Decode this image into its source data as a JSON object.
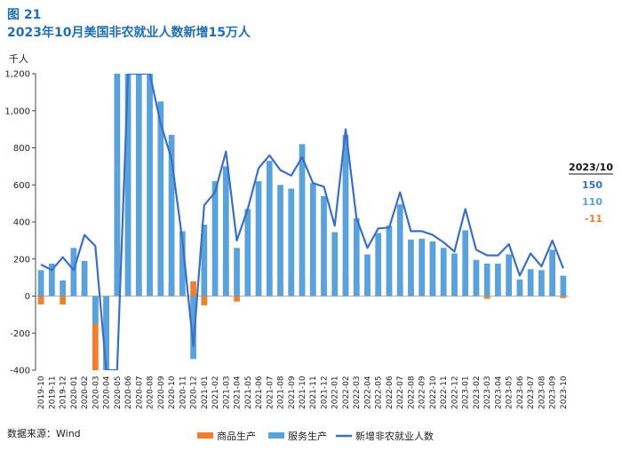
{
  "figure": {
    "number": "图 21",
    "title": "2023年10月美国非农就业人数新增15万人",
    "unit": "千人",
    "source": "数据来源：Wind"
  },
  "colors": {
    "goods": "#f07f2e",
    "services": "#5aa2dc",
    "total": "#3a6fc4",
    "accent": "#1f6fb2"
  },
  "annotation": {
    "title": "2023/10",
    "values": [
      "150",
      "110",
      "-11"
    ]
  },
  "chart_data": {
    "type": "bar",
    "title": "",
    "xlabel": "",
    "ylabel": "千人",
    "ylim": [
      -400,
      1200
    ],
    "yticks": [
      -400,
      -200,
      0,
      200,
      400,
      600,
      800,
      1000,
      1200
    ],
    "ytick_labels": [
      "-400",
      "-200",
      "0",
      "200",
      "400",
      "600",
      "800",
      "1,000",
      "1,200"
    ],
    "grid": false,
    "legend_position": "bottom",
    "categories": [
      "2019-10",
      "2019-11",
      "2019-12",
      "2020-01",
      "2020-02",
      "2020-03",
      "2020-04",
      "2020-05",
      "2020-06",
      "2020-07",
      "2020-08",
      "2020-09",
      "2020-10",
      "2020-11",
      "2020-12",
      "2021-01",
      "2021-02",
      "2021-03",
      "2021-04",
      "2021-05",
      "2021-06",
      "2021-07",
      "2021-08",
      "2021-09",
      "2021-10",
      "2021-11",
      "2021-12",
      "2022-01",
      "2022-02",
      "2022-03",
      "2022-04",
      "2022-05",
      "2022-06",
      "2022-07",
      "2022-08",
      "2022-09",
      "2022-10",
      "2022-11",
      "2022-12",
      "2023-01",
      "2023-02",
      "2023-03",
      "2023-04",
      "2023-05",
      "2023-06",
      "2023-07",
      "2023-08",
      "2023-09",
      "2023-10"
    ],
    "series": [
      {
        "name": "商品生产",
        "kind": "bar",
        "values": [
          -45,
          25,
          -45,
          35,
          30,
          -400,
          -400,
          690,
          480,
          55,
          50,
          80,
          75,
          40,
          80,
          -50,
          0,
          170,
          -30,
          15,
          25,
          90,
          70,
          85,
          105,
          95,
          85,
          35,
          115,
          80,
          65,
          60,
          55,
          65,
          40,
          40,
          45,
          45,
          45,
          45,
          20,
          -15,
          20,
          20,
          30,
          15,
          25,
          25,
          -11
        ]
      },
      {
        "name": "服务生产",
        "kind": "bar",
        "values": [
          140,
          175,
          85,
          260,
          190,
          -150,
          -400,
          1200,
          1200,
          1200,
          1200,
          1050,
          870,
          350,
          -340,
          385,
          620,
          700,
          260,
          470,
          620,
          730,
          600,
          580,
          820,
          610,
          540,
          345,
          870,
          420,
          225,
          340,
          380,
          495,
          305,
          310,
          295,
          260,
          230,
          355,
          195,
          175,
          175,
          225,
          90,
          145,
          140,
          250,
          110
        ]
      },
      {
        "name": "新增非农就业人数",
        "kind": "line",
        "values": [
          170,
          140,
          210,
          140,
          330,
          270,
          -400,
          -400,
          1200,
          1200,
          1200,
          930,
          740,
          300,
          -270,
          490,
          560,
          780,
          300,
          470,
          690,
          760,
          680,
          650,
          750,
          610,
          590,
          380,
          900,
          420,
          260,
          365,
          370,
          560,
          350,
          350,
          330,
          290,
          240,
          470,
          250,
          220,
          220,
          280,
          110,
          230,
          160,
          300,
          150
        ]
      }
    ]
  }
}
